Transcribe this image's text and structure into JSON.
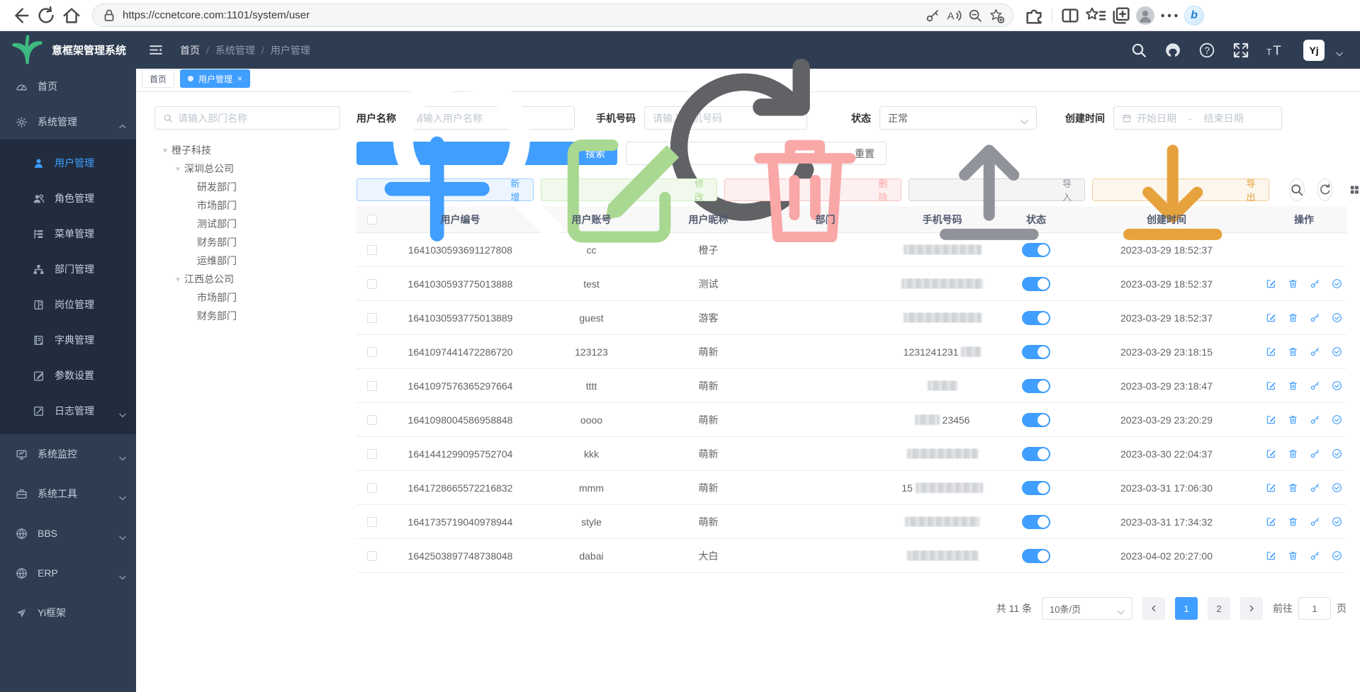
{
  "browser": {
    "url": "https://ccnetcore.com:1101/system/user"
  },
  "app": {
    "title": "意框架管理系统",
    "avatar_text": "Yj"
  },
  "colors": {
    "primary": "#409eff",
    "sidebar_bg": "#2f3d52",
    "submenu_bg": "#212d3f",
    "success": "#67c23a",
    "danger": "#f56c6c",
    "warning": "#e6a23c",
    "info": "#909399"
  },
  "breadcrumb": [
    "首页",
    "系统管理",
    "用户管理"
  ],
  "tabs": [
    {
      "key": "home",
      "label": "首页",
      "active": false
    },
    {
      "key": "user-management",
      "label": "用户管理",
      "active": true
    }
  ],
  "sidebar": {
    "items": [
      {
        "key": "home",
        "label": "首页",
        "icon": "dashboard-icon",
        "type": "top"
      },
      {
        "key": "system",
        "label": "系统管理",
        "icon": "gear-icon",
        "type": "top",
        "caret": "up"
      },
      {
        "key": "user",
        "label": "用户管理",
        "icon": "user-icon",
        "type": "sub",
        "active": true
      },
      {
        "key": "role",
        "label": "角色管理",
        "icon": "roles-icon",
        "type": "sub"
      },
      {
        "key": "menu",
        "label": "菜单管理",
        "icon": "menu-tree-icon",
        "type": "sub"
      },
      {
        "key": "dept",
        "label": "部门管理",
        "icon": "org-icon",
        "type": "sub"
      },
      {
        "key": "post",
        "label": "岗位管理",
        "icon": "post-icon",
        "type": "sub"
      },
      {
        "key": "dict",
        "label": "字典管理",
        "icon": "dict-icon",
        "type": "sub"
      },
      {
        "key": "param",
        "label": "参数设置",
        "icon": "param-icon",
        "type": "sub"
      },
      {
        "key": "log",
        "label": "日志管理",
        "icon": "log-icon",
        "type": "sub",
        "caret": "down"
      },
      {
        "key": "monitor",
        "label": "系统监控",
        "icon": "monitor-icon",
        "type": "top",
        "caret": "down"
      },
      {
        "key": "tools",
        "label": "系统工具",
        "icon": "tools-icon",
        "type": "top",
        "caret": "down"
      },
      {
        "key": "bbs",
        "label": "BBS",
        "icon": "globe-icon",
        "type": "top",
        "caret": "down"
      },
      {
        "key": "erp",
        "label": "ERP",
        "icon": "globe-icon",
        "type": "top",
        "caret": "down"
      },
      {
        "key": "yi",
        "label": "Yi框架",
        "icon": "send-icon",
        "type": "top"
      }
    ]
  },
  "filters": {
    "dept_placeholder": "请输入部门名称",
    "username_label": "用户名称",
    "username_placeholder": "请输入用户名称",
    "phone_label": "手机号码",
    "phone_placeholder": "请输入手机号码",
    "status_label": "状态",
    "status_value": "正常",
    "created_label": "创建时间",
    "date_start_placeholder": "开始日期",
    "date_separator": "-",
    "date_end_placeholder": "结束日期",
    "search_label": "搜索",
    "reset_label": "重置"
  },
  "tree": {
    "nodes": [
      {
        "label": "橙子科技",
        "level": 0,
        "caret": true
      },
      {
        "label": "深圳总公司",
        "level": 1,
        "caret": true
      },
      {
        "label": "研发部门",
        "level": 2,
        "caret": false
      },
      {
        "label": "市场部门",
        "level": 2,
        "caret": false
      },
      {
        "label": "测试部门",
        "level": 2,
        "caret": false
      },
      {
        "label": "财务部门",
        "level": 2,
        "caret": false
      },
      {
        "label": "运维部门",
        "level": 2,
        "caret": false
      },
      {
        "label": "江西总公司",
        "level": 1,
        "caret": true
      },
      {
        "label": "市场部门",
        "level": 2,
        "caret": false
      },
      {
        "label": "财务部门",
        "level": 2,
        "caret": false
      }
    ]
  },
  "toolbar": {
    "add": "新增",
    "edit": "修改",
    "delete": "删除",
    "import": "导入",
    "export": "导出"
  },
  "table": {
    "columns": [
      "用户编号",
      "用户账号",
      "用户昵称",
      "部门",
      "手机号码",
      "状态",
      "创建时间",
      "操作"
    ],
    "rows": [
      {
        "id": "1641030593691127808",
        "account": "cc",
        "nickname": "橙子",
        "dept": "",
        "phone_prefix": "",
        "phone_mask_width": 110,
        "phone_suffix": "",
        "status_on": true,
        "created": "2023-03-29 18:52:37",
        "has_actions": false
      },
      {
        "id": "1641030593775013888",
        "account": "test",
        "nickname": "测试",
        "dept": "",
        "phone_prefix": "",
        "phone_mask_width": 115,
        "phone_suffix": "",
        "status_on": true,
        "created": "2023-03-29 18:52:37",
        "has_actions": true
      },
      {
        "id": "1641030593775013889",
        "account": "guest",
        "nickname": "游客",
        "dept": "",
        "phone_prefix": "",
        "phone_mask_width": 110,
        "phone_suffix": "",
        "status_on": true,
        "created": "2023-03-29 18:52:37",
        "has_actions": true
      },
      {
        "id": "1641097441472286720",
        "account": "123123",
        "nickname": "萌新",
        "dept": "",
        "phone_prefix": "1231241231",
        "phone_mask_width": 28,
        "phone_suffix": "",
        "status_on": true,
        "created": "2023-03-29 23:18:15",
        "has_actions": true
      },
      {
        "id": "1641097576365297664",
        "account": "tttt",
        "nickname": "萌新",
        "dept": "",
        "phone_prefix": "",
        "phone_mask_width": 42,
        "phone_suffix": "",
        "status_on": true,
        "created": "2023-03-29 23:18:47",
        "has_actions": true
      },
      {
        "id": "1641098004586958848",
        "account": "oooo",
        "nickname": "萌新",
        "dept": "",
        "phone_prefix": "",
        "phone_mask_width": 35,
        "phone_suffix": "23456",
        "status_on": true,
        "created": "2023-03-29 23:20:29",
        "has_actions": true
      },
      {
        "id": "1641441299095752704",
        "account": "kkk",
        "nickname": "萌新",
        "dept": "",
        "phone_prefix": "",
        "phone_mask_width": 100,
        "phone_suffix": "",
        "status_on": true,
        "created": "2023-03-30 22:04:37",
        "has_actions": true
      },
      {
        "id": "1641728665572216832",
        "account": "mmm",
        "nickname": "萌新",
        "dept": "",
        "phone_prefix": "15",
        "phone_mask_width": 95,
        "phone_suffix": "",
        "status_on": true,
        "created": "2023-03-31 17:06:30",
        "has_actions": true
      },
      {
        "id": "1641735719040978944",
        "account": "style",
        "nickname": "萌新",
        "dept": "",
        "phone_prefix": "",
        "phone_mask_width": 105,
        "phone_suffix": "",
        "status_on": true,
        "created": "2023-03-31 17:34:32",
        "has_actions": true
      },
      {
        "id": "1642503897748738048",
        "account": "dabai",
        "nickname": "大白",
        "dept": "",
        "phone_prefix": "",
        "phone_mask_width": 100,
        "phone_suffix": "",
        "status_on": true,
        "created": "2023-04-02 20:27:00",
        "has_actions": true
      }
    ]
  },
  "pagination": {
    "total_text": "共 11 条",
    "page_size": "10条/页",
    "pages": [
      "1",
      "2"
    ],
    "active_page": "1",
    "goto_label": "前往",
    "goto_value": "1",
    "goto_unit": "页"
  }
}
